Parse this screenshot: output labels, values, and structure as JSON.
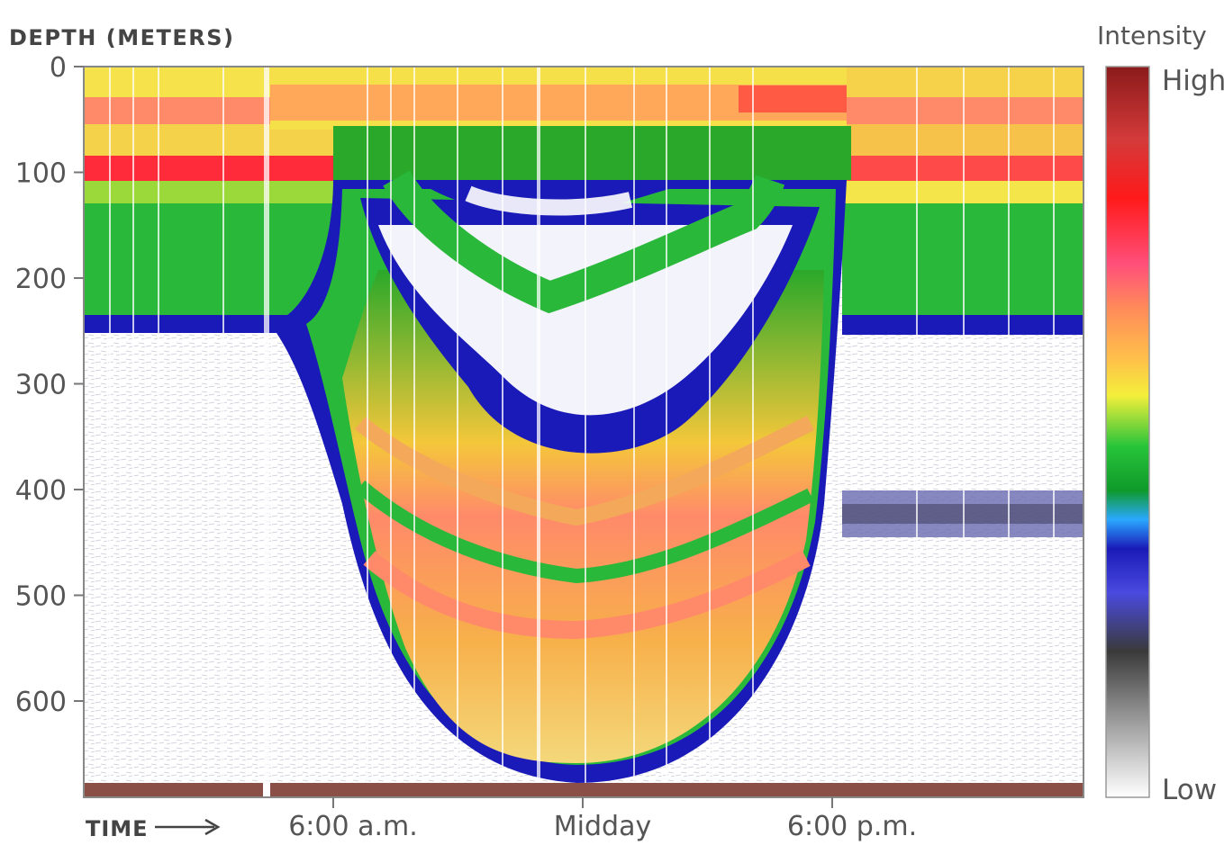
{
  "chart_data": {
    "type": "heatmap",
    "title": "",
    "ylabel": "DEPTH (METERS)",
    "xlabel": "TIME",
    "y_ticks": [
      "0",
      "100",
      "200",
      "300",
      "400",
      "500",
      "600"
    ],
    "y_tick_values": [
      0,
      100,
      200,
      300,
      400,
      500,
      600
    ],
    "ylim": [
      0,
      690
    ],
    "y_reversed": true,
    "x_ticks": [
      "6:00 a.m.",
      "Midday",
      "6:00 p.m."
    ],
    "x_tick_values_hours": [
      6,
      12,
      18
    ],
    "xlim_hours": [
      0,
      24
    ],
    "colorbar": {
      "title": "Intensity",
      "high_label": "High",
      "low_label": "Low",
      "colors_high_to_low": [
        "#8b1a1a",
        "#d43a3a",
        "#ff1a1a",
        "#ff4f7a",
        "#ff8a5a",
        "#ffc04a",
        "#f4ef3a",
        "#27c43a",
        "#0f9a2a",
        "#2aa8ff",
        "#1a1ab8",
        "#4a4ae0",
        "#3a3a3a",
        "#8c8c8c",
        "#d0d0d0",
        "#ffffff"
      ]
    },
    "layers": [
      {
        "name": "surface-high",
        "depth_top_m": 0,
        "depth_bottom_m": 40,
        "level": "high"
      },
      {
        "name": "red-band-night",
        "depth_top_m": 85,
        "depth_bottom_m": 110,
        "level": "very-high"
      },
      {
        "name": "green-band-night",
        "depth_top_m": 130,
        "depth_bottom_m": 240,
        "level": "medium"
      },
      {
        "name": "blue-edge",
        "depth_top_m": 240,
        "depth_bottom_m": 260,
        "level": "low-medium"
      },
      {
        "name": "migrating-layer-day",
        "depth_top_m": 250,
        "depth_bottom_m": 670,
        "level": "high"
      },
      {
        "name": "dark-band-evening",
        "depth_top_m": 400,
        "depth_bottom_m": 440,
        "level": "low"
      }
    ]
  }
}
